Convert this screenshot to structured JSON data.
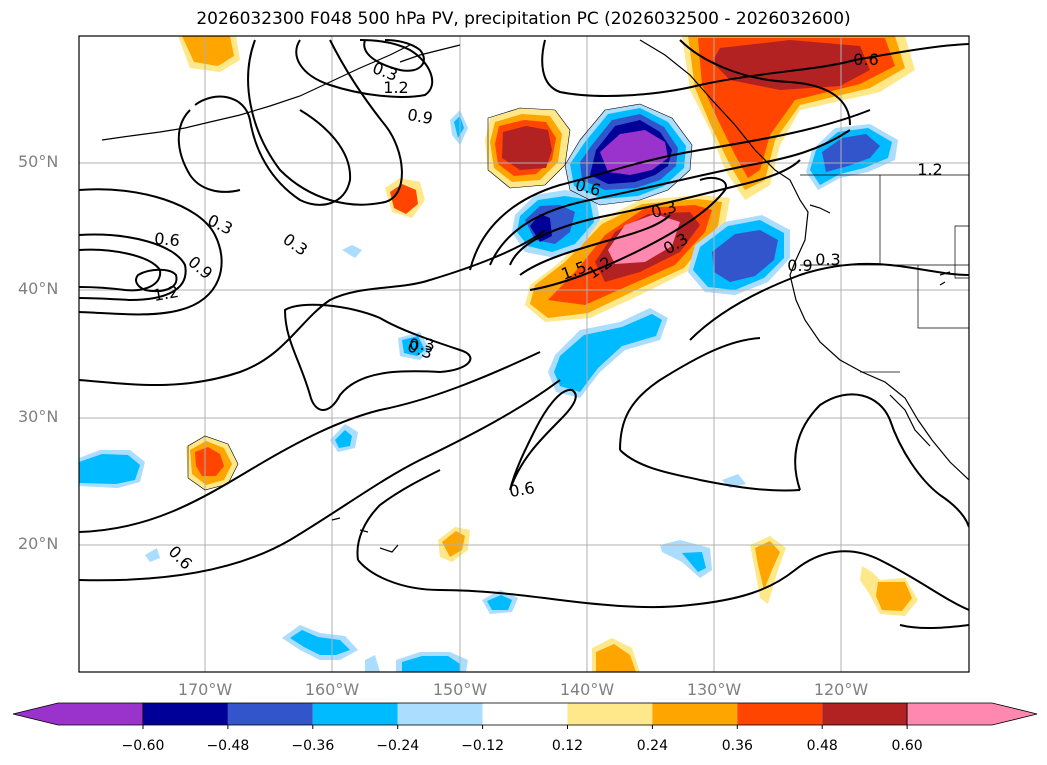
{
  "title": "2026032300 F048 500 hPa PV, precipitation PC (2026032500 - 2026032600)",
  "lat_labels": [
    "50°N",
    "40°N",
    "30°N",
    "20°N"
  ],
  "lon_labels": [
    "170°W",
    "160°W",
    "150°W",
    "140°W",
    "130°W",
    "120°W"
  ],
  "contour_labels": [
    "0.6",
    "0.3",
    "1.2",
    "0.9",
    "0.3",
    "0.6",
    "0.3",
    "0.9",
    "1.2",
    "0.6",
    "0.3",
    "0.3",
    "1.2",
    "0.9",
    "0.6",
    "0.3",
    "1.5",
    "1.2",
    "0.3",
    "0.6",
    "0.3"
  ],
  "colorbar": {
    "ticks": [
      "−0.60",
      "−0.48",
      "−0.36",
      "−0.24",
      "−0.12",
      "0.12",
      "0.24",
      "0.36",
      "0.48",
      "0.60"
    ],
    "colors": [
      "#9933cc",
      "#000099",
      "#3355cc",
      "#00bbff",
      "#aaddff",
      "#ffffff",
      "#ffe88a",
      "#ffa500",
      "#ff4500",
      "#b22222",
      "#ff88b0"
    ]
  },
  "palette": {
    "neg_purple": "#9933cc",
    "neg_navy": "#000099",
    "neg_blue": "#3355cc",
    "neg_cyan": "#00bbff",
    "neg_light": "#aaddff",
    "pos_yellow": "#ffe88a",
    "pos_orange": "#ffa500",
    "pos_red": "#ff4500",
    "pos_dark": "#b22222",
    "pos_pink": "#ff88b0"
  }
}
